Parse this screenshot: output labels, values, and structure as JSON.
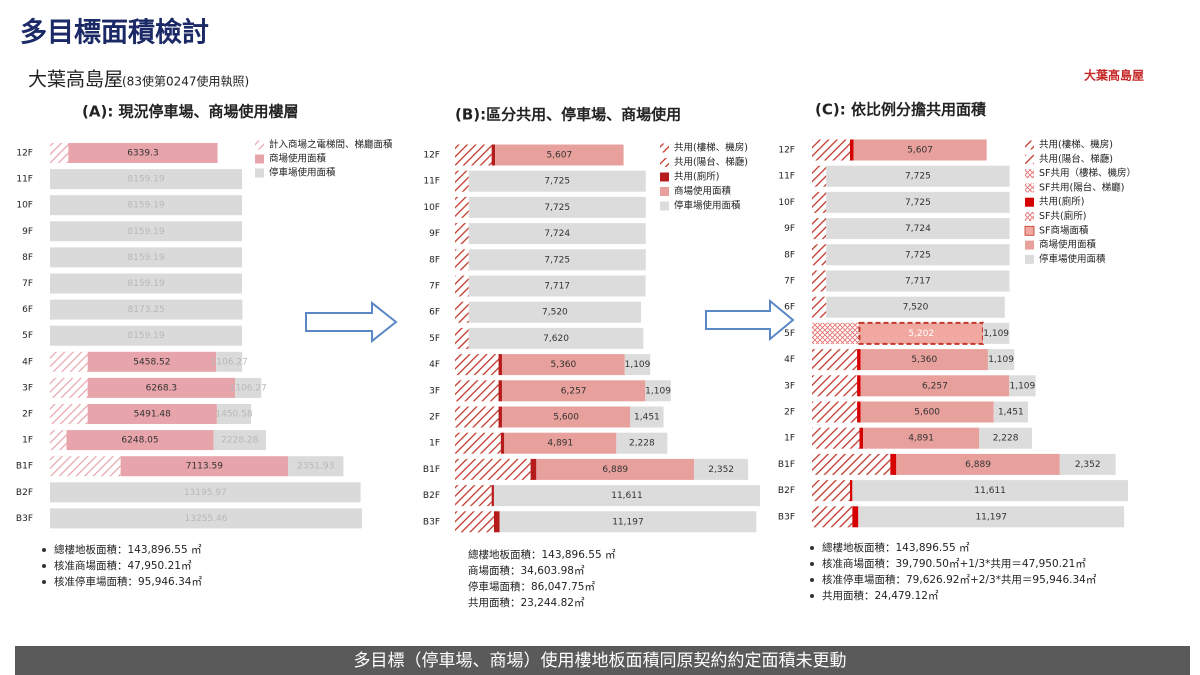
{
  "title": "多目標面積檢討",
  "building": "大葉高島屋",
  "permit": "(83使第0247使用執照)",
  "logo": "大葉髙島屋",
  "footer": "多目標（停車場、商場）使用樓地板面積同原契約約定面積未更動",
  "chart_data": [
    {
      "type": "bar",
      "orientation": "horizontal",
      "stacked": true,
      "title": "(A): 現況停車場、商場使用樓層",
      "categories": [
        "12F",
        "11F",
        "10F",
        "9F",
        "8F",
        "7F",
        "6F",
        "5F",
        "4F",
        "3F",
        "2F",
        "1F",
        "B1F",
        "B2F",
        "B3F"
      ],
      "series": [
        {
          "name": "計入商場之電梯間、梯廳面積",
          "color": "#d9534f",
          "fill_style": "hatch",
          "values": [
            780,
            null,
            null,
            null,
            null,
            null,
            null,
            null,
            1600,
            1600,
            1600,
            700,
            3000,
            null,
            null
          ]
        },
        {
          "name": "商場使用面積",
          "color": "#e8a4ab",
          "fill_style": "solid",
          "data_labels": true,
          "label_color": "#333",
          "values": [
            6339.3,
            null,
            null,
            null,
            null,
            null,
            null,
            null,
            5458.52,
            6268.3,
            5491.48,
            6248.05,
            7113.59,
            null,
            null
          ]
        },
        {
          "name": "停車場使用面積",
          "color": "#dadada",
          "fill_style": "solid",
          "data_labels": true,
          "label_color": "#b8b8b8",
          "values": [
            null,
            8159.19,
            8159.19,
            8159.19,
            8159.19,
            8159.19,
            8173.25,
            8159.19,
            1106.27,
            1106.27,
            1450.58,
            2228.28,
            2351.93,
            13195.97,
            13255.46
          ]
        }
      ],
      "notes": [
        "總樓地板面積：143,896.55 ㎡",
        "核准商場面積：47,950.21㎡",
        "核准停車場面積：95,946.34㎡"
      ]
    },
    {
      "type": "bar",
      "orientation": "horizontal",
      "stacked": true,
      "title": "(B):區分共用、停車場、商場使用",
      "categories": [
        "12F",
        "11F",
        "10F",
        "9F",
        "8F",
        "7F",
        "6F",
        "5F",
        "4F",
        "3F",
        "2F",
        "1F",
        "B1F",
        "B2F",
        "B3F"
      ],
      "series": [
        {
          "name": "共用(樓梯、機房)",
          "color": "#c0392b",
          "fill_style": "hatch",
          "values": [
            1600,
            600,
            600,
            600,
            600,
            600,
            600,
            600,
            1900,
            1900,
            1900,
            2000,
            3300,
            1600,
            1700
          ]
        },
        {
          "name": "共用(陽台、梯廳)",
          "color": "#c0392b",
          "fill_style": "hatch",
          "values": [
            null,
            null,
            null,
            null,
            null,
            null,
            null,
            null,
            null,
            null,
            null,
            null,
            null,
            null,
            null
          ]
        },
        {
          "name": "共用(廁所)",
          "color": "#b71c1c",
          "fill_style": "solid",
          "values": [
            150,
            null,
            null,
            null,
            null,
            null,
            null,
            null,
            150,
            150,
            150,
            150,
            250,
            100,
            250
          ]
        },
        {
          "name": "商場使用面積",
          "color": "#e8a09c",
          "fill_style": "solid",
          "data_labels": true,
          "label_color": "#333",
          "values": [
            5607,
            null,
            null,
            null,
            null,
            null,
            null,
            null,
            5360,
            6257,
            5600,
            4891,
            6889,
            null,
            null
          ],
          "value_labels": [
            "5,607",
            null,
            null,
            null,
            null,
            null,
            null,
            null,
            "5,360",
            "6,257",
            "5,600",
            "4,891",
            "6,889",
            null,
            null
          ]
        },
        {
          "name": "停車場使用面積",
          "color": "#dcdcdc",
          "fill_style": "solid",
          "data_labels": true,
          "label_color": "#333",
          "values": [
            null,
            7725,
            7725,
            7724,
            7725,
            7717,
            7520,
            7620,
            1109,
            1109,
            1451,
            2228,
            2352,
            11611,
            11197
          ],
          "value_labels": [
            null,
            "7,725",
            "7,725",
            "7,724",
            "7,725",
            "7,717",
            "7,520",
            "7,620",
            "1,109",
            "1,109",
            "1,451",
            "2,228",
            "2,352",
            "11,611",
            "11,197"
          ]
        }
      ],
      "notes": [
        "總樓地板面積：143,896.55 ㎡",
        "商場面積：34,603.98㎡",
        "停車場面積：86,047.75㎡",
        "共用面積：23,244.82㎡"
      ]
    },
    {
      "type": "bar",
      "orientation": "horizontal",
      "stacked": true,
      "title": "(C): 依比例分擔共用面積",
      "categories": [
        "12F",
        "11F",
        "10F",
        "9F",
        "8F",
        "7F",
        "6F",
        "5F",
        "4F",
        "3F",
        "2F",
        "1F",
        "B1F",
        "B2F",
        "B3F"
      ],
      "series": [
        {
          "name": "共用(樓梯、機房)",
          "color": "#c0392b",
          "fill_style": "hatch",
          "values": [
            1600,
            600,
            600,
            600,
            600,
            600,
            600,
            null,
            1900,
            1900,
            1900,
            2000,
            3300,
            1600,
            1700
          ]
        },
        {
          "name": "共用(陽台、梯廳)",
          "color": "#c0392b",
          "fill_style": "hatch",
          "values": [
            null,
            null,
            null,
            null,
            null,
            null,
            null,
            null,
            null,
            null,
            null,
            null,
            null,
            null,
            null
          ]
        },
        {
          "name": "SF共用（樓梯、機房）",
          "color": "#e57373",
          "fill_style": "cross",
          "values": [
            null,
            null,
            null,
            null,
            null,
            null,
            null,
            2000,
            null,
            null,
            null,
            null,
            null,
            null,
            null
          ]
        },
        {
          "name": "SF共用(陽台、梯廳)",
          "color": "#e57373",
          "fill_style": "cross",
          "values": [
            null,
            null,
            null,
            null,
            null,
            null,
            null,
            null,
            null,
            null,
            null,
            null,
            null,
            null,
            null
          ]
        },
        {
          "name": "共用(廁所)",
          "color": "#d50000",
          "fill_style": "solid",
          "values": [
            150,
            null,
            null,
            null,
            null,
            null,
            null,
            null,
            150,
            150,
            150,
            150,
            250,
            100,
            250
          ]
        },
        {
          "name": "SF共(廁所)",
          "color": "#e57373",
          "fill_style": "cross",
          "values": [
            null,
            null,
            null,
            null,
            null,
            null,
            null,
            null,
            null,
            null,
            null,
            null,
            null,
            null,
            null
          ]
        },
        {
          "name": "SF商場面積",
          "color": "#f0a8a0",
          "fill_style": "dashed",
          "data_labels": true,
          "label_color": "#fff",
          "values": [
            null,
            null,
            null,
            null,
            null,
            null,
            null,
            5202,
            null,
            null,
            null,
            null,
            null,
            null,
            null
          ],
          "value_labels": [
            null,
            null,
            null,
            null,
            null,
            null,
            null,
            "5,202",
            null,
            null,
            null,
            null,
            null,
            null,
            null
          ]
        },
        {
          "name": "商場使用面積",
          "color": "#e8a09c",
          "fill_style": "solid",
          "data_labels": true,
          "label_color": "#333",
          "values": [
            5607,
            null,
            null,
            null,
            null,
            null,
            null,
            null,
            5360,
            6257,
            5600,
            4891,
            6889,
            null,
            null
          ],
          "value_labels": [
            "5,607",
            null,
            null,
            null,
            null,
            null,
            null,
            null,
            "5,360",
            "6,257",
            "5,600",
            "4,891",
            "6,889",
            null,
            null
          ]
        },
        {
          "name": "停車場使用面積",
          "color": "#dcdcdc",
          "fill_style": "solid",
          "data_labels": true,
          "label_color": "#333",
          "values": [
            null,
            7725,
            7725,
            7724,
            7725,
            7717,
            7520,
            1109,
            1109,
            1109,
            1451,
            2228,
            2352,
            11611,
            11197
          ],
          "value_labels": [
            null,
            "7,725",
            "7,725",
            "7,724",
            "7,725",
            "7,717",
            "7,520",
            "1,109",
            "1,109",
            "1,109",
            "1,451",
            "2,228",
            "2,352",
            "11,611",
            "11,197"
          ]
        }
      ],
      "notes": [
        "總樓地板面積：143,896.55 ㎡",
        "核准商場面積：39,790.50㎡+1/3*共用＝47,950.21㎡",
        "核准停車場面積：79,626.92㎡+2/3*共用＝95,946.34㎡",
        "共用面積：24,479.12㎡"
      ]
    }
  ]
}
